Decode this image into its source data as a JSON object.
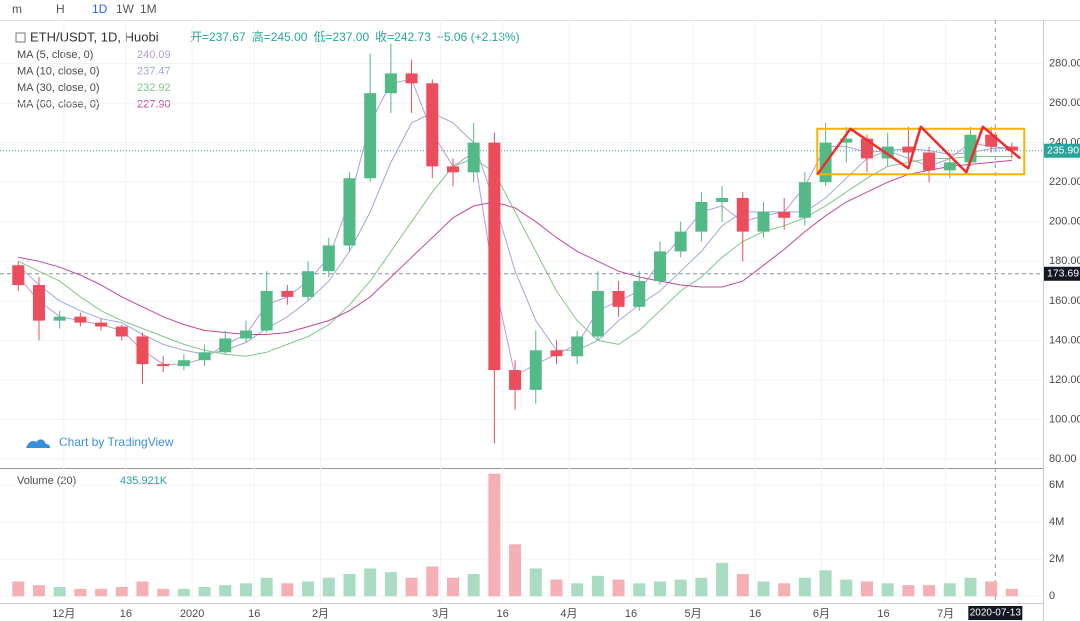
{
  "toolbar": [
    "m",
    "H",
    "1D",
    "1W",
    "1M"
  ],
  "chart_data": {
    "type": "candlestick",
    "title": "ETH/USDT, 1D, Huobi",
    "ohlc_header": [
      "开=237.67",
      "高=245.00",
      "低=237.00",
      "收=242.73",
      "+5.06 (+2.13%)"
    ],
    "watermark": "Chart by TradingView",
    "x": [
      "2019-11-20",
      "2019-11-25",
      "2019-11-30",
      "2019-12-05",
      "2019-12-10",
      "2019-12-15",
      "2019-12-20",
      "2019-12-25",
      "2019-12-30",
      "2020-01-04",
      "2020-01-09",
      "2020-01-14",
      "2020-01-19",
      "2020-01-24",
      "2020-01-29",
      "2020-02-03",
      "2020-02-08",
      "2020-02-13",
      "2020-02-18",
      "2020-02-23",
      "2020-02-28",
      "2020-03-04",
      "2020-03-09",
      "2020-03-14",
      "2020-03-19",
      "2020-03-24",
      "2020-03-29",
      "2020-04-03",
      "2020-04-08",
      "2020-04-13",
      "2020-04-18",
      "2020-04-23",
      "2020-04-28",
      "2020-05-03",
      "2020-05-08",
      "2020-05-13",
      "2020-05-18",
      "2020-05-23",
      "2020-05-28",
      "2020-06-02",
      "2020-06-07",
      "2020-06-12",
      "2020-06-17",
      "2020-06-22",
      "2020-06-27",
      "2020-07-02",
      "2020-07-07",
      "2020-07-12",
      "2020-07-17"
    ],
    "open": [
      178,
      168,
      150,
      152,
      149,
      147,
      142,
      128,
      127,
      130,
      134,
      141,
      145,
      165,
      162,
      175,
      188,
      222,
      265,
      275,
      270,
      228,
      225,
      240,
      125,
      115,
      135,
      132,
      142,
      165,
      157,
      170,
      185,
      195,
      210,
      212,
      195,
      205,
      202,
      220,
      240,
      242,
      232,
      238,
      235,
      226,
      230,
      244,
      238
    ],
    "high": [
      180,
      172,
      155,
      154,
      151,
      148,
      144,
      132,
      133,
      138,
      145,
      150,
      175,
      168,
      180,
      192,
      225,
      285,
      290,
      282,
      272,
      232,
      250,
      245,
      130,
      145,
      140,
      145,
      175,
      170,
      175,
      190,
      200,
      215,
      218,
      215,
      210,
      212,
      225,
      250,
      248,
      244,
      245,
      248,
      238,
      235,
      248,
      248,
      240
    ],
    "low": [
      165,
      140,
      146,
      147,
      145,
      140,
      118,
      124,
      125,
      127,
      133,
      139,
      144,
      158,
      160,
      172,
      185,
      220,
      255,
      255,
      222,
      218,
      220,
      88,
      105,
      108,
      128,
      128,
      140,
      152,
      155,
      168,
      182,
      190,
      200,
      180,
      192,
      196,
      198,
      218,
      230,
      225,
      228,
      230,
      220,
      222,
      228,
      235,
      232
    ],
    "close": [
      168,
      150,
      152,
      149,
      147,
      142,
      128,
      127,
      130,
      134,
      141,
      145,
      165,
      162,
      175,
      188,
      222,
      265,
      275,
      270,
      228,
      225,
      240,
      125,
      115,
      135,
      132,
      142,
      165,
      157,
      170,
      185,
      195,
      210,
      212,
      195,
      205,
      202,
      220,
      240,
      242,
      232,
      238,
      235,
      226,
      230,
      244,
      238,
      236
    ],
    "up_color": "#53b987",
    "down_color": "#eb4d5c",
    "ma": [
      {
        "name": "MA (5, close, 0)",
        "last": "240.09",
        "color": "#b39ddb",
        "values": [
          172,
          160,
          152,
          150,
          148,
          145,
          135,
          128,
          128,
          131,
          138,
          143,
          158,
          162,
          170,
          182,
          210,
          250,
          270,
          272,
          245,
          228,
          235,
          170,
          122,
          128,
          133,
          138,
          155,
          160,
          165,
          180,
          192,
          205,
          208,
          200,
          203,
          205,
          218,
          238,
          238,
          235,
          236,
          232,
          228,
          232,
          240,
          238,
          237
        ]
      },
      {
        "name": "MA (10, close, 0)",
        "last": "237.47",
        "color": "#9fa8da",
        "values": [
          178,
          168,
          160,
          155,
          151,
          149,
          143,
          138,
          135,
          133,
          135,
          139,
          146,
          152,
          160,
          170,
          185,
          205,
          230,
          250,
          255,
          250,
          240,
          210,
          175,
          150,
          135,
          135,
          140,
          150,
          158,
          165,
          175,
          185,
          198,
          205,
          205,
          205,
          205,
          212,
          222,
          232,
          236,
          237,
          236,
          234,
          235,
          237,
          237
        ]
      },
      {
        "name": "MA (30, close, 0)",
        "last": "232.92",
        "color": "#81c784",
        "values": [
          180,
          175,
          170,
          162,
          155,
          150,
          146,
          142,
          138,
          135,
          133,
          132,
          134,
          138,
          142,
          148,
          158,
          170,
          185,
          200,
          215,
          228,
          232,
          225,
          205,
          185,
          165,
          150,
          140,
          138,
          145,
          155,
          165,
          172,
          182,
          190,
          195,
          198,
          202,
          208,
          215,
          222,
          228,
          230,
          232,
          232,
          233,
          233,
          233
        ]
      },
      {
        "name": "MA (60, close, 0)",
        "last": "227.90",
        "color": "#c2489c",
        "values": [
          182,
          180,
          177,
          173,
          168,
          162,
          157,
          152,
          148,
          145,
          144,
          143,
          143,
          144,
          147,
          150,
          155,
          162,
          172,
          182,
          192,
          202,
          208,
          210,
          207,
          200,
          192,
          185,
          180,
          175,
          172,
          170,
          168,
          167,
          167,
          170,
          178,
          186,
          195,
          203,
          210,
          215,
          220,
          224,
          226,
          228,
          229,
          230,
          231
        ]
      }
    ],
    "ylim": [
      76,
      302
    ],
    "yticks": [
      {
        "value": 80,
        "label": "80.00"
      },
      {
        "value": 100,
        "label": "100.00"
      },
      {
        "value": 120,
        "label": "120.00"
      },
      {
        "value": 140,
        "label": "140.00"
      },
      {
        "value": 160,
        "label": "160.00"
      },
      {
        "value": 180,
        "label": "180.00"
      },
      {
        "value": 200,
        "label": "200.00"
      },
      {
        "value": 220,
        "label": "220.00"
      },
      {
        "value": 240,
        "label": "240.00"
      },
      {
        "value": 260,
        "label": "260.00"
      },
      {
        "value": 280,
        "label": "280.00"
      }
    ],
    "xlim": [
      "2019-11-18",
      "2020-07-25"
    ],
    "xticks": [
      {
        "value": "2019-12-01",
        "label": "12月"
      },
      {
        "value": "2019-12-16",
        "label": "16"
      },
      {
        "value": "2020-01-01",
        "label": "2020"
      },
      {
        "value": "2020-01-16",
        "label": "16"
      },
      {
        "value": "2020-02-01",
        "label": "2月"
      },
      {
        "value": "2020-03-01",
        "label": "3月"
      },
      {
        "value": "2020-03-16",
        "label": "16"
      },
      {
        "value": "2020-04-01",
        "label": "4月"
      },
      {
        "value": "2020-04-16",
        "label": "16"
      },
      {
        "value": "2020-05-01",
        "label": "5月"
      },
      {
        "value": "2020-05-16",
        "label": "16"
      },
      {
        "value": "2020-06-01",
        "label": "6月"
      },
      {
        "value": "2020-06-16",
        "label": "16"
      },
      {
        "value": "2020-07-01",
        "label": "7月"
      }
    ],
    "price_lines": [
      {
        "value": 235.9,
        "label": "235.90",
        "color": "#26a69a"
      },
      {
        "value": 173.69,
        "label": "173.69",
        "color": "#8c8f99"
      }
    ],
    "crosshair": {
      "value": "2020-07-13",
      "label": "2020-07-13"
    },
    "rectangle": {
      "x": [
        "2020-05-31",
        "2020-07-20"
      ],
      "y": [
        224,
        247
      ],
      "color": "#f5b400"
    },
    "zigzag": {
      "x": [
        "2020-05-31",
        "2020-06-08",
        "2020-06-22",
        "2020-06-25",
        "2020-07-06",
        "2020-07-10",
        "2020-07-19"
      ],
      "y": [
        224,
        247,
        227,
        248,
        225,
        248,
        232
      ],
      "color": "#f22c2c"
    },
    "volume": {
      "name": "Volume (20)",
      "last": "435.921K",
      "up_color": "#a9dcc3",
      "down_color": "#f5b0b6",
      "values": [
        0.8,
        0.6,
        0.5,
        0.4,
        0.4,
        0.5,
        0.8,
        0.4,
        0.4,
        0.5,
        0.6,
        0.7,
        1.0,
        0.7,
        0.8,
        1.0,
        1.2,
        1.5,
        1.3,
        1.0,
        1.6,
        1.0,
        1.2,
        6.6,
        2.8,
        1.5,
        0.9,
        0.7,
        1.1,
        0.9,
        0.7,
        0.8,
        0.9,
        1.0,
        1.8,
        1.2,
        0.8,
        0.7,
        1.0,
        1.4,
        0.9,
        0.8,
        0.7,
        0.6,
        0.6,
        0.7,
        1.0,
        0.8,
        0.4
      ],
      "ylim": [
        -0.2,
        6.8
      ],
      "yticks": [
        0,
        {
          "value": 2,
          "label": "2M"
        },
        {
          "value": 4,
          "label": "4M"
        },
        {
          "value": 6,
          "label": "6M"
        }
      ]
    }
  }
}
